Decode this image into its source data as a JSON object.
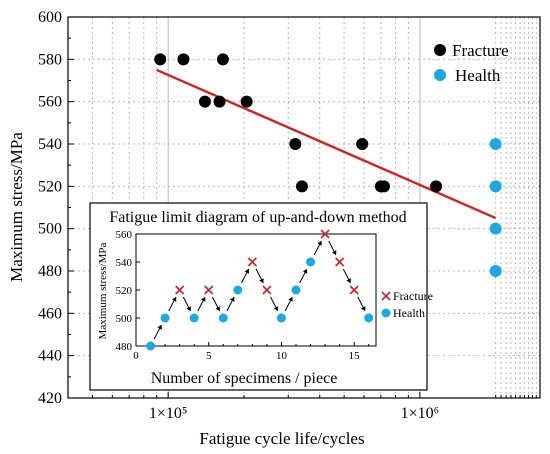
{
  "colors": {
    "fracture": "#000000",
    "health": "#1ba9e0",
    "fit_line": "#d62020",
    "inset_fracture": "#cc2a2a",
    "grid": "#b9b9b9"
  },
  "chart_data": [
    {
      "type": "scatter",
      "xlabel": "Fatigue cycle life/cycles",
      "ylabel": "Maximum stress/MPa",
      "x_scale": "log",
      "xlim": [
        40000,
        3000000
      ],
      "ylim": [
        420,
        600
      ],
      "yticks": [
        420,
        440,
        460,
        480,
        500,
        520,
        540,
        560,
        580,
        600
      ],
      "xticks": [
        {
          "value": 100000,
          "label": "1×10⁵"
        },
        {
          "value": 1000000,
          "label": "1×10⁶"
        }
      ],
      "grid": true,
      "legend_position": "top-right",
      "series": [
        {
          "name": "Fracture",
          "points": [
            {
              "x": 93000,
              "y": 580
            },
            {
              "x": 115000,
              "y": 580
            },
            {
              "x": 165000,
              "y": 580
            },
            {
              "x": 140000,
              "y": 560
            },
            {
              "x": 160000,
              "y": 560
            },
            {
              "x": 205000,
              "y": 560
            },
            {
              "x": 320000,
              "y": 540
            },
            {
              "x": 590000,
              "y": 540
            },
            {
              "x": 340000,
              "y": 520
            },
            {
              "x": 700000,
              "y": 520
            },
            {
              "x": 720000,
              "y": 520
            },
            {
              "x": 1160000,
              "y": 520
            }
          ]
        },
        {
          "name": "Health",
          "points": [
            {
              "x": 2000000,
              "y": 540
            },
            {
              "x": 2000000,
              "y": 520
            },
            {
              "x": 2000000,
              "y": 500
            },
            {
              "x": 2000000,
              "y": 480
            }
          ]
        }
      ],
      "fit_line": {
        "x": [
          90000,
          2000000
        ],
        "y": [
          575,
          505
        ]
      }
    },
    {
      "type": "scatter",
      "title": "Fatigue limit diagram of up-and-down method",
      "xlabel": "Number of specimens / piece",
      "ylabel": "Maximum stress/MPa",
      "xlim": [
        0,
        16.5
      ],
      "ylim": [
        480,
        560
      ],
      "xticks": [
        0,
        5,
        10,
        15
      ],
      "yticks": [
        480,
        500,
        520,
        540,
        560
      ],
      "legend_position": "right",
      "series": [
        {
          "name": "Fracture",
          "points": [
            {
              "x": 3,
              "y": 520
            },
            {
              "x": 5,
              "y": 520
            },
            {
              "x": 8,
              "y": 540
            },
            {
              "x": 9,
              "y": 520
            },
            {
              "x": 13,
              "y": 560
            },
            {
              "x": 14,
              "y": 540
            },
            {
              "x": 15,
              "y": 520
            }
          ]
        },
        {
          "name": "Health",
          "points": [
            {
              "x": 1,
              "y": 480
            },
            {
              "x": 2,
              "y": 500
            },
            {
              "x": 4,
              "y": 500
            },
            {
              "x": 6,
              "y": 500
            },
            {
              "x": 7,
              "y": 520
            },
            {
              "x": 10,
              "y": 500
            },
            {
              "x": 11,
              "y": 520
            },
            {
              "x": 12,
              "y": 540
            },
            {
              "x": 16,
              "y": 500
            }
          ]
        }
      ]
    }
  ]
}
